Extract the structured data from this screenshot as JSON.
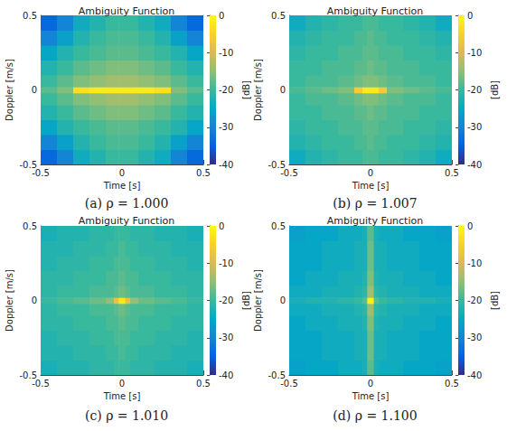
{
  "chart_data": [
    {
      "type": "heatmap",
      "title": "Ambiguity Function",
      "caption": "(a) ρ = 1.000",
      "x_label": "Time [s]",
      "y_label": "Doppler [m/s]",
      "xlim": [
        -0.5,
        0.5
      ],
      "xticks": [
        -0.5,
        0,
        0.5
      ],
      "ylim": [
        -0.5,
        0.5
      ],
      "yticks": [
        -0.5,
        0,
        0.5
      ],
      "x_edges": [
        -0.5,
        -0.4,
        -0.3,
        -0.2,
        -0.1,
        -0.05,
        -0.02,
        0.02,
        0.05,
        0.1,
        0.2,
        0.3,
        0.4,
        0.5
      ],
      "y_edges": [
        -0.5,
        -0.4,
        -0.3,
        -0.2,
        -0.1,
        -0.02,
        0.02,
        0.1,
        0.2,
        0.3,
        0.4,
        0.5
      ],
      "cells": [
        [
          -34,
          -30,
          -24,
          -22,
          -20,
          -20,
          -20,
          -20,
          -20,
          -22,
          -24,
          -30,
          -34
        ],
        [
          -30,
          -26,
          -22,
          -20,
          -19,
          -19,
          -19,
          -19,
          -19,
          -20,
          -22,
          -26,
          -30
        ],
        [
          -25,
          -22,
          -20,
          -19,
          -18,
          -18,
          -18,
          -18,
          -18,
          -19,
          -20,
          -22,
          -25
        ],
        [
          -22,
          -20,
          -18,
          -17,
          -16,
          -16,
          -16,
          -16,
          -16,
          -17,
          -18,
          -20,
          -22
        ],
        [
          -20,
          -18,
          -16,
          -15,
          -14,
          -14,
          -14,
          -14,
          -14,
          -15,
          -16,
          -18,
          -20
        ],
        [
          -18,
          -16,
          -3,
          -2,
          -2,
          -2,
          -2,
          -2,
          -2,
          -2,
          -3,
          -16,
          -18
        ],
        [
          -20,
          -18,
          -16,
          -15,
          -14,
          -14,
          -14,
          -14,
          -14,
          -15,
          -16,
          -18,
          -20
        ],
        [
          -22,
          -20,
          -18,
          -17,
          -16,
          -16,
          -16,
          -16,
          -16,
          -17,
          -18,
          -20,
          -22
        ],
        [
          -25,
          -22,
          -20,
          -19,
          -18,
          -18,
          -18,
          -18,
          -18,
          -19,
          -20,
          -22,
          -25
        ],
        [
          -30,
          -26,
          -22,
          -20,
          -19,
          -19,
          -19,
          -19,
          -19,
          -20,
          -22,
          -26,
          -30
        ],
        [
          -34,
          -30,
          -24,
          -22,
          -20,
          -20,
          -20,
          -20,
          -20,
          -22,
          -24,
          -30,
          -34
        ]
      ],
      "color_range": [
        -40,
        0
      ],
      "color_ticks": [
        0,
        -10,
        -20,
        -30,
        -40
      ],
      "color_label": "[dB]"
    },
    {
      "type": "heatmap",
      "title": "Ambiguity Function",
      "caption": "(b) ρ = 1.007",
      "x_label": "Time [s]",
      "y_label": "Doppler [m/s]",
      "xlim": [
        -0.5,
        0.5
      ],
      "xticks": [
        -0.5,
        0,
        0.5
      ],
      "ylim": [
        -0.5,
        0.5
      ],
      "yticks": [
        -0.5,
        0,
        0.5
      ],
      "x_edges": [
        -0.5,
        -0.4,
        -0.3,
        -0.2,
        -0.1,
        -0.05,
        -0.02,
        0.02,
        0.05,
        0.1,
        0.2,
        0.3,
        0.4,
        0.5
      ],
      "y_edges": [
        -0.5,
        -0.4,
        -0.3,
        -0.2,
        -0.1,
        -0.02,
        0.02,
        0.1,
        0.2,
        0.3,
        0.4,
        0.5
      ],
      "cells": [
        [
          -24,
          -22,
          -21,
          -20,
          -20,
          -19,
          -19,
          -19,
          -20,
          -20,
          -21,
          -22,
          -24
        ],
        [
          -22,
          -21,
          -20,
          -20,
          -19,
          -19,
          -18,
          -19,
          -19,
          -20,
          -20,
          -21,
          -22
        ],
        [
          -21,
          -20,
          -20,
          -19,
          -19,
          -18,
          -18,
          -18,
          -19,
          -19,
          -20,
          -20,
          -21
        ],
        [
          -20,
          -20,
          -19,
          -19,
          -18,
          -18,
          -17,
          -18,
          -18,
          -19,
          -19,
          -20,
          -20
        ],
        [
          -20,
          -19,
          -19,
          -18,
          -17,
          -16,
          -16,
          -16,
          -17,
          -18,
          -19,
          -19,
          -20
        ],
        [
          -19,
          -18,
          -17,
          -16,
          -6,
          -2,
          -2,
          -2,
          -6,
          -16,
          -17,
          -18,
          -19
        ],
        [
          -20,
          -19,
          -19,
          -18,
          -17,
          -16,
          -16,
          -16,
          -17,
          -18,
          -19,
          -19,
          -20
        ],
        [
          -20,
          -20,
          -19,
          -19,
          -18,
          -18,
          -17,
          -18,
          -18,
          -19,
          -19,
          -20,
          -20
        ],
        [
          -21,
          -20,
          -20,
          -19,
          -19,
          -18,
          -18,
          -18,
          -19,
          -19,
          -20,
          -20,
          -21
        ],
        [
          -22,
          -21,
          -20,
          -20,
          -19,
          -19,
          -18,
          -19,
          -19,
          -20,
          -20,
          -21,
          -22
        ],
        [
          -24,
          -22,
          -21,
          -20,
          -20,
          -19,
          -19,
          -19,
          -20,
          -20,
          -21,
          -22,
          -24
        ]
      ],
      "color_range": [
        -40,
        0
      ],
      "color_ticks": [
        0,
        -10,
        -20,
        -30,
        -40
      ],
      "color_label": "[dB]"
    },
    {
      "type": "heatmap",
      "title": "Ambiguity Function",
      "caption": "(c) ρ = 1.010",
      "x_label": "Time [s]",
      "y_label": "Doppler [m/s]",
      "xlim": [
        -0.5,
        0.5
      ],
      "xticks": [
        -0.5,
        0,
        0.5
      ],
      "ylim": [
        -0.5,
        0.5
      ],
      "yticks": [
        -0.5,
        0,
        0.5
      ],
      "x_edges": [
        -0.5,
        -0.4,
        -0.3,
        -0.2,
        -0.1,
        -0.05,
        -0.02,
        0.02,
        0.05,
        0.1,
        0.2,
        0.3,
        0.4,
        0.5
      ],
      "y_edges": [
        -0.5,
        -0.4,
        -0.3,
        -0.2,
        -0.1,
        -0.02,
        0.02,
        0.1,
        0.2,
        0.3,
        0.4,
        0.5
      ],
      "cells": [
        [
          -23,
          -22,
          -22,
          -21,
          -21,
          -20,
          -20,
          -20,
          -21,
          -21,
          -22,
          -22,
          -23
        ],
        [
          -22,
          -22,
          -21,
          -21,
          -20,
          -20,
          -19,
          -20,
          -20,
          -21,
          -21,
          -22,
          -22
        ],
        [
          -22,
          -21,
          -21,
          -20,
          -20,
          -19,
          -19,
          -19,
          -20,
          -20,
          -21,
          -21,
          -22
        ],
        [
          -21,
          -21,
          -20,
          -20,
          -19,
          -19,
          -18,
          -19,
          -19,
          -20,
          -20,
          -21,
          -21
        ],
        [
          -21,
          -20,
          -20,
          -19,
          -19,
          -18,
          -17,
          -18,
          -19,
          -19,
          -20,
          -20,
          -21
        ],
        [
          -20,
          -19,
          -18,
          -17,
          -15,
          -8,
          -2,
          -8,
          -15,
          -17,
          -18,
          -19,
          -20
        ],
        [
          -21,
          -20,
          -20,
          -19,
          -19,
          -18,
          -17,
          -18,
          -19,
          -19,
          -20,
          -20,
          -21
        ],
        [
          -21,
          -21,
          -20,
          -20,
          -19,
          -19,
          -18,
          -19,
          -19,
          -20,
          -20,
          -21,
          -21
        ],
        [
          -22,
          -21,
          -21,
          -20,
          -20,
          -19,
          -19,
          -19,
          -20,
          -20,
          -21,
          -21,
          -22
        ],
        [
          -22,
          -22,
          -21,
          -21,
          -20,
          -20,
          -19,
          -20,
          -20,
          -21,
          -21,
          -22,
          -22
        ],
        [
          -23,
          -22,
          -22,
          -21,
          -21,
          -20,
          -20,
          -20,
          -21,
          -21,
          -22,
          -22,
          -23
        ]
      ],
      "color_range": [
        -40,
        0
      ],
      "color_ticks": [
        0,
        -10,
        -20,
        -30,
        -40
      ],
      "color_label": "[dB]"
    },
    {
      "type": "heatmap",
      "title": "Ambiguity Function",
      "caption": "(d) ρ = 1.100",
      "x_label": "Time [s]",
      "y_label": "Doppler [m/s]",
      "xlim": [
        -0.5,
        0.5
      ],
      "xticks": [
        -0.5,
        0,
        0.5
      ],
      "ylim": [
        -0.5,
        0.5
      ],
      "yticks": [
        -0.5,
        0,
        0.5
      ],
      "x_edges": [
        -0.5,
        -0.4,
        -0.3,
        -0.2,
        -0.1,
        -0.05,
        -0.02,
        0.02,
        0.05,
        0.1,
        0.2,
        0.3,
        0.4,
        0.5
      ],
      "y_edges": [
        -0.5,
        -0.4,
        -0.3,
        -0.2,
        -0.1,
        -0.02,
        0.02,
        0.1,
        0.2,
        0.3,
        0.4,
        0.5
      ],
      "cells": [
        [
          -26,
          -25,
          -25,
          -24,
          -24,
          -23,
          -18,
          -23,
          -24,
          -24,
          -25,
          -25,
          -26
        ],
        [
          -25,
          -25,
          -24,
          -24,
          -23,
          -23,
          -17,
          -23,
          -23,
          -24,
          -24,
          -25,
          -25
        ],
        [
          -25,
          -25,
          -24,
          -24,
          -23,
          -23,
          -17,
          -23,
          -23,
          -24,
          -24,
          -25,
          -25
        ],
        [
          -25,
          -24,
          -24,
          -23,
          -23,
          -22,
          -16,
          -22,
          -23,
          -23,
          -24,
          -24,
          -25
        ],
        [
          -24,
          -24,
          -23,
          -23,
          -22,
          -21,
          -14,
          -21,
          -22,
          -23,
          -23,
          -24,
          -24
        ],
        [
          -23,
          -22,
          -22,
          -21,
          -20,
          -18,
          -1,
          -18,
          -20,
          -21,
          -22,
          -22,
          -23
        ],
        [
          -24,
          -24,
          -23,
          -23,
          -22,
          -21,
          -14,
          -21,
          -22,
          -23,
          -23,
          -24,
          -24
        ],
        [
          -25,
          -24,
          -24,
          -23,
          -23,
          -22,
          -16,
          -22,
          -23,
          -23,
          -24,
          -24,
          -25
        ],
        [
          -25,
          -25,
          -24,
          -24,
          -23,
          -23,
          -17,
          -23,
          -23,
          -24,
          -24,
          -25,
          -25
        ],
        [
          -25,
          -25,
          -24,
          -24,
          -23,
          -23,
          -17,
          -23,
          -23,
          -24,
          -24,
          -25,
          -25
        ],
        [
          -26,
          -25,
          -25,
          -24,
          -24,
          -23,
          -18,
          -23,
          -24,
          -24,
          -25,
          -25,
          -26
        ]
      ],
      "color_range": [
        -40,
        0
      ],
      "color_ticks": [
        0,
        -10,
        -20,
        -30,
        -40
      ],
      "color_label": "[dB]"
    }
  ]
}
